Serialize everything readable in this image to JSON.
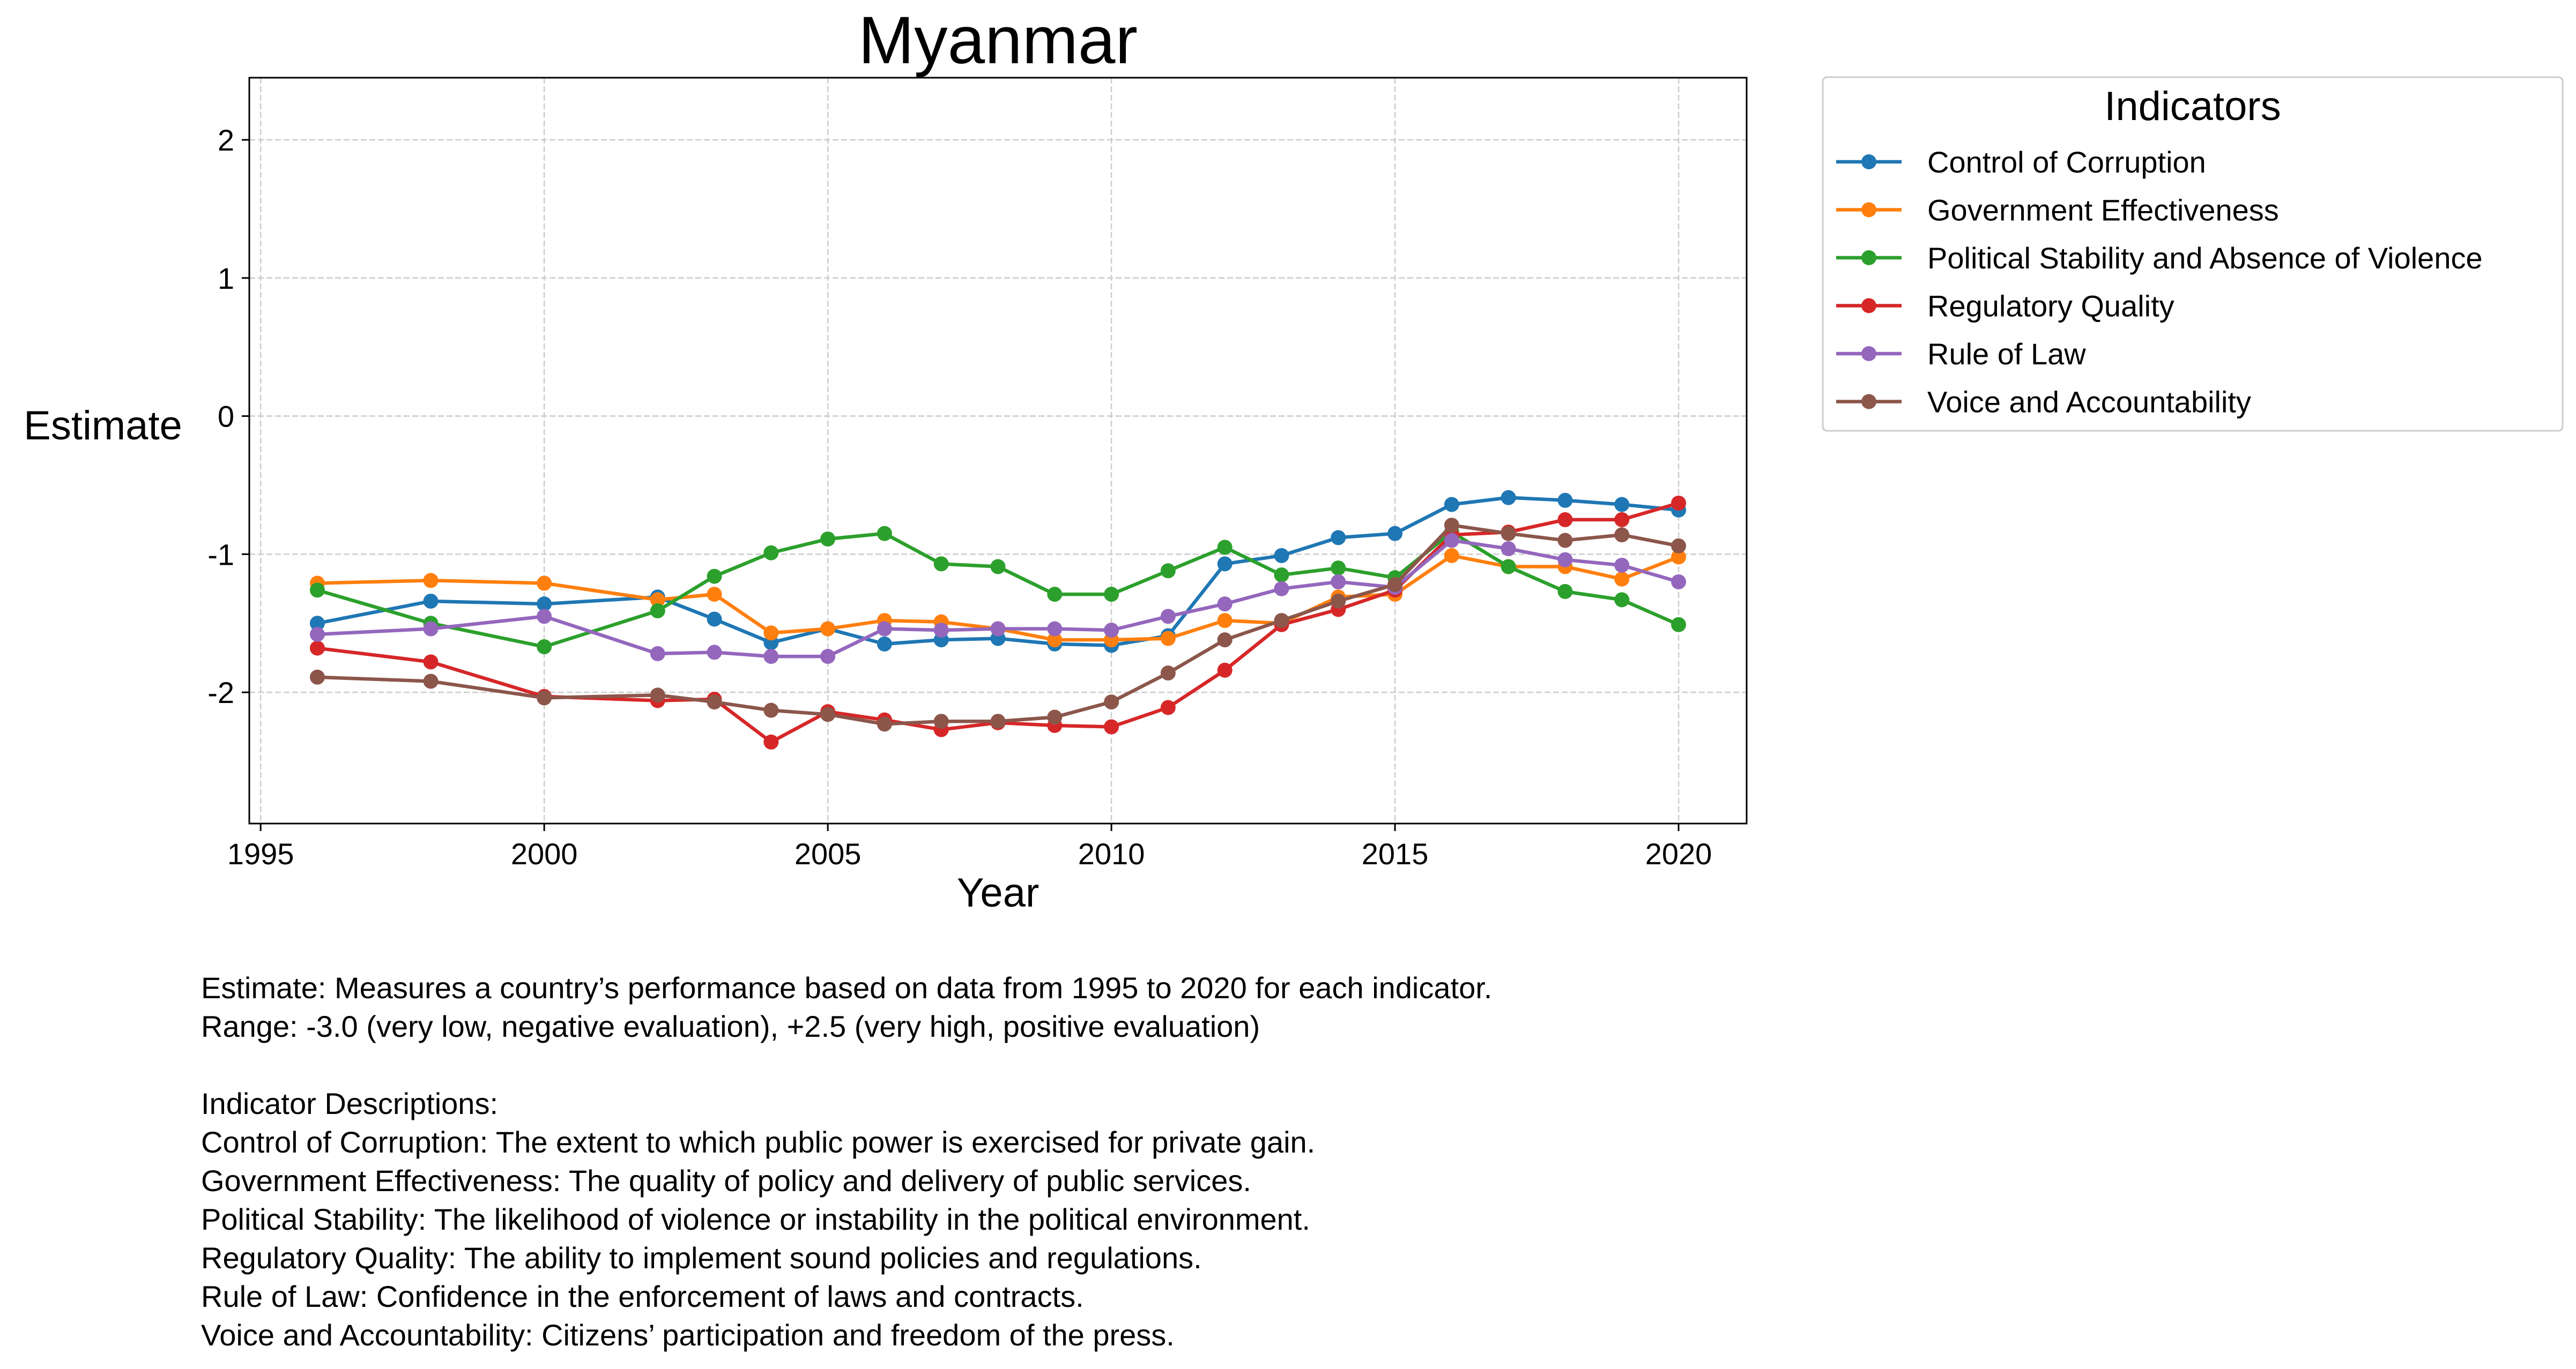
{
  "chart_data": {
    "type": "line",
    "title": "Myanmar",
    "xlabel": "Year",
    "ylabel": "Estimate",
    "xlim": [
      1994.8,
      2021.2
    ],
    "ylim": [
      -2.95,
      2.45
    ],
    "x_ticks": [
      1995,
      2000,
      2005,
      2010,
      2015,
      2020
    ],
    "y_ticks": [
      -2,
      -1,
      0,
      1,
      2
    ],
    "grid": true,
    "legend": {
      "title": "Indicators",
      "placement": "outside-top-right"
    },
    "x": [
      1996,
      1998,
      2000,
      2002,
      2003,
      2004,
      2005,
      2006,
      2007,
      2008,
      2009,
      2010,
      2011,
      2012,
      2013,
      2014,
      2015,
      2016,
      2017,
      2018,
      2019,
      2020
    ],
    "series": [
      {
        "name": "Control of Corruption",
        "color": "#1f77b4",
        "values": [
          -1.5,
          -1.34,
          -1.36,
          -1.31,
          -1.47,
          -1.64,
          -1.54,
          -1.65,
          -1.62,
          -1.61,
          -1.65,
          -1.66,
          -1.59,
          -1.07,
          -1.01,
          -0.88,
          -0.85,
          -0.64,
          -0.59,
          -0.61,
          -0.64,
          -0.68
        ]
      },
      {
        "name": "Government Effectiveness",
        "color": "#ff7f0e",
        "values": [
          -1.21,
          -1.19,
          -1.21,
          -1.33,
          -1.29,
          -1.57,
          -1.54,
          -1.48,
          -1.49,
          -1.54,
          -1.62,
          -1.62,
          -1.61,
          -1.48,
          -1.5,
          -1.31,
          -1.29,
          -1.01,
          -1.09,
          -1.09,
          -1.18,
          -1.02
        ]
      },
      {
        "name": "Political Stability and Absence of Violence",
        "color": "#2ca02c",
        "values": [
          -1.26,
          -1.5,
          -1.67,
          -1.41,
          -1.16,
          -0.99,
          -0.89,
          -0.85,
          -1.07,
          -1.09,
          -1.29,
          -1.29,
          -1.12,
          -0.95,
          -1.15,
          -1.1,
          -1.17,
          -0.84,
          -1.09,
          -1.27,
          -1.33,
          -1.51
        ]
      },
      {
        "name": "Regulatory Quality",
        "color": "#d62728",
        "values": [
          -1.68,
          -1.78,
          -2.03,
          -2.06,
          -2.05,
          -2.36,
          -2.14,
          -2.2,
          -2.27,
          -2.22,
          -2.24,
          -2.25,
          -2.11,
          -1.84,
          -1.51,
          -1.4,
          -1.26,
          -0.86,
          -0.84,
          -0.75,
          -0.75,
          -0.63
        ]
      },
      {
        "name": "Rule of Law",
        "color": "#9467bd",
        "values": [
          -1.58,
          -1.54,
          -1.45,
          -1.72,
          -1.71,
          -1.74,
          -1.74,
          -1.54,
          -1.55,
          -1.54,
          -1.54,
          -1.55,
          -1.45,
          -1.36,
          -1.25,
          -1.2,
          -1.24,
          -0.9,
          -0.96,
          -1.04,
          -1.08,
          -1.2
        ]
      },
      {
        "name": "Voice and Accountability",
        "color": "#8c564b",
        "values": [
          -1.89,
          -1.92,
          -2.04,
          -2.02,
          -2.07,
          -2.13,
          -2.16,
          -2.23,
          -2.21,
          -2.21,
          -2.18,
          -2.07,
          -1.86,
          -1.62,
          -1.48,
          -1.34,
          -1.22,
          -0.79,
          -0.85,
          -0.9,
          -0.86,
          -0.94
        ]
      }
    ]
  },
  "notes": {
    "line1": "Estimate: Measures a country’s performance based on data from 1995 to 2020 for each indicator.",
    "line2": "Range: -3.0 (very low, negative evaluation), +2.5 (very high, positive evaluation)",
    "line3": "Indicator Descriptions:",
    "line4": "Control of Corruption: The extent to which public power is exercised for private gain.",
    "line5": "Government Effectiveness: The quality of policy and delivery of public services.",
    "line6": "Political Stability: The likelihood of violence or instability in the political environment.",
    "line7": "Regulatory Quality: The ability to implement sound policies and regulations.",
    "line8": "Rule of Law: Confidence in the enforcement of laws and contracts.",
    "line9": "Voice and Accountability: Citizens’ participation and freedom of the press."
  }
}
